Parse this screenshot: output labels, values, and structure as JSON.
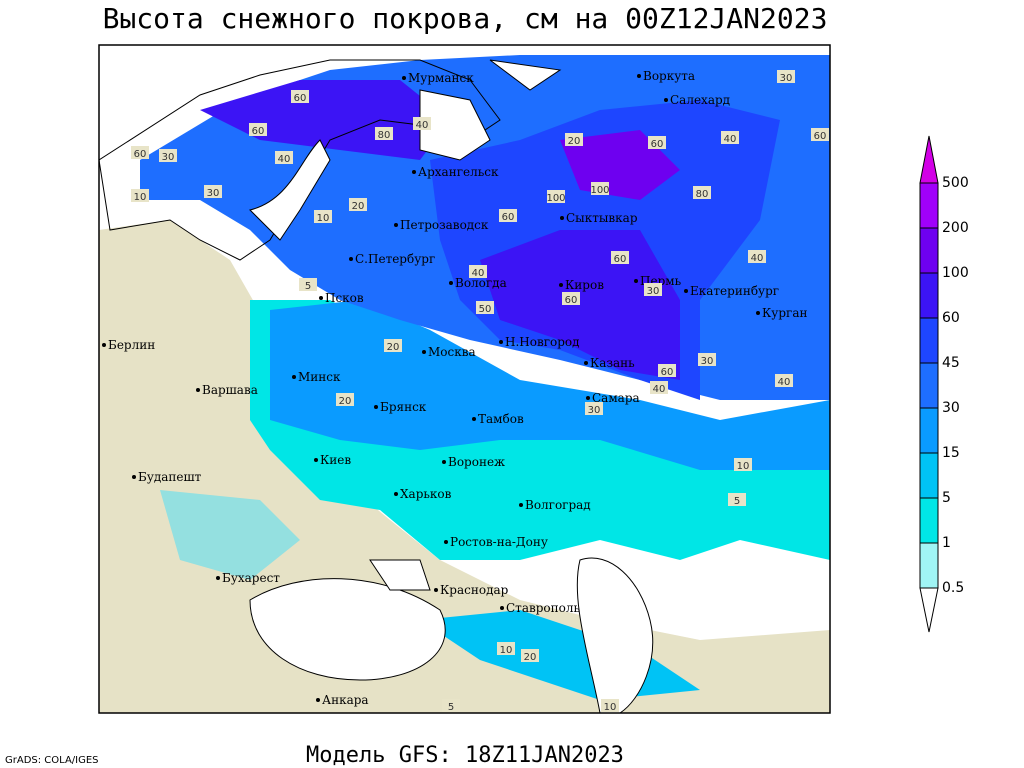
{
  "title": "Высота снежного покрова, см на 00Z12JAN2023",
  "model": "Модель GFS: 18Z11JAN2023",
  "credit": "GrADS: COLA/IGES",
  "cities": [
    "Мурманск",
    "Воркута",
    "Салехард",
    "Архангельск",
    "Сыктывкар",
    "Петрозаводск",
    "С.Петербург",
    "Вологда",
    "Киров",
    "Пермь",
    "Екатеринбург",
    "Курган",
    "Псков",
    "Берлин",
    "Москва",
    "Н.Новгород",
    "Казань",
    "Минск",
    "Варшава",
    "Самара",
    "Брянск",
    "Тамбов",
    "Киев",
    "Воронеж",
    "Будапешт",
    "Харьков",
    "Волгоград",
    "Ростов-на-Дону",
    "Бухарест",
    "Краснодар",
    "Ставрополь",
    "Анкара"
  ],
  "contour_labels": [
    60,
    80,
    60,
    40,
    30,
    20,
    10,
    30,
    60,
    40,
    100,
    100,
    60,
    80,
    60,
    40,
    30,
    20,
    10,
    5,
    40,
    40,
    60,
    30,
    40,
    20,
    50,
    20,
    30,
    10,
    5,
    10,
    20,
    5,
    10,
    40,
    60,
    60,
    30,
    60
  ],
  "legend": {
    "levels": [
      0.5,
      1,
      5,
      15,
      30,
      45,
      60,
      100,
      200,
      500
    ],
    "colors": [
      "#ffffff",
      "#a0f5f5",
      "#00e6e6",
      "#00c3f5",
      "#0a9bff",
      "#1e6eff",
      "#1e46ff",
      "#3c14f5",
      "#6e00f0",
      "#a000fa",
      "#d200e6"
    ]
  }
}
